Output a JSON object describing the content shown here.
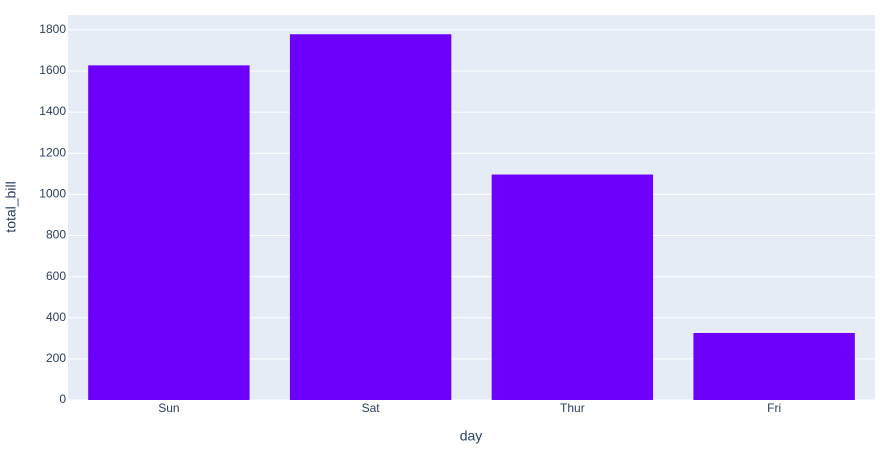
{
  "chart_data": {
    "type": "bar",
    "x_label": "day",
    "y_label": "total_bill",
    "categories": [
      "Sun",
      "Sat",
      "Thur",
      "Fri"
    ],
    "values": [
      1627.16,
      1778.4,
      1096.33,
      325.88
    ],
    "color": "#6c00fa",
    "ylim": [
      0,
      1872
    ],
    "yticks": [
      0,
      200,
      400,
      600,
      800,
      1000,
      1200,
      1400,
      1600,
      1800
    ],
    "grid": true
  }
}
